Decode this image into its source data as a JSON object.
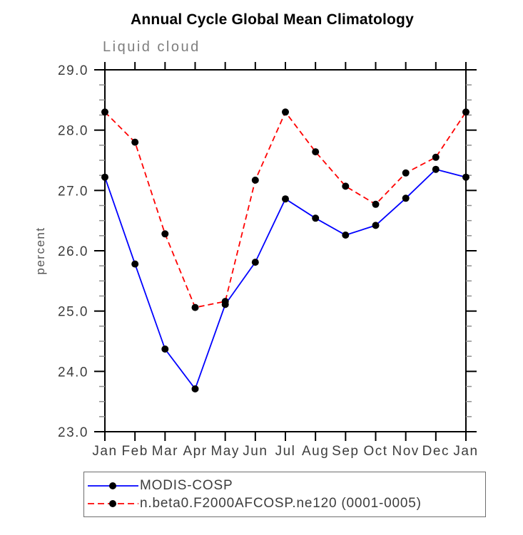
{
  "header": {
    "title": "Annual Cycle Global Mean Climatology",
    "subtitle": "Liquid cloud"
  },
  "chart_data": {
    "type": "line",
    "title": "Annual Cycle Global Mean Climatology",
    "subtitle": "Liquid cloud",
    "xlabel": "",
    "ylabel": "percent",
    "categories": [
      "Jan",
      "Feb",
      "Mar",
      "Apr",
      "May",
      "Jun",
      "Jul",
      "Aug",
      "Sep",
      "Oct",
      "Nov",
      "Dec",
      "Jan"
    ],
    "ylim": [
      23.0,
      29.0
    ],
    "ytick_interval": 1.0,
    "yminor_interval": 0.25,
    "ytick_labels": [
      "23.0",
      "24.0",
      "25.0",
      "26.0",
      "27.0",
      "28.0",
      "29.0"
    ],
    "grid": false,
    "legend_position": "bottom-left",
    "frame_color": "#000000",
    "minor_tick_color": "#909090",
    "series": [
      {
        "name": "MODIS-COSP",
        "color": "#0000ff",
        "style": "solid",
        "marker": "circle",
        "marker_color": "#000000",
        "values": [
          27.22,
          25.78,
          24.37,
          23.71,
          25.11,
          25.81,
          26.86,
          26.54,
          26.26,
          26.42,
          26.87,
          27.35,
          27.22
        ]
      },
      {
        "name": "n.beta0.F2000AFCOSP.ne120 (0001-0005)",
        "color": "#ff0000",
        "style": "dashed",
        "marker": "circle",
        "marker_color": "#000000",
        "values": [
          28.3,
          27.8,
          26.28,
          25.06,
          25.16,
          27.17,
          28.3,
          27.64,
          27.07,
          26.77,
          27.29,
          27.55,
          28.3
        ]
      }
    ]
  }
}
